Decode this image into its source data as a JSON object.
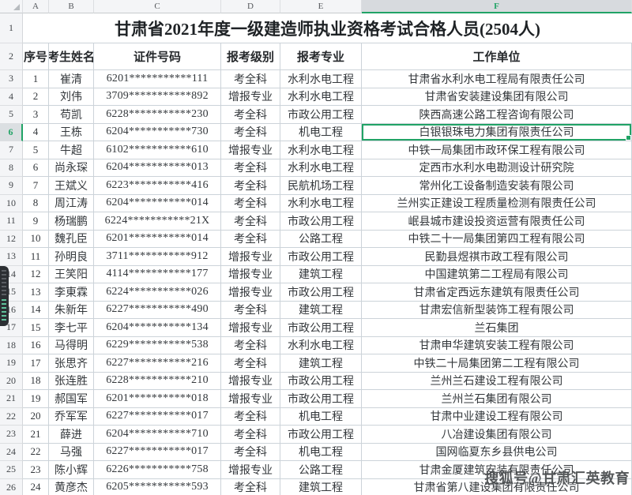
{
  "sheet": {
    "column_headers": [
      "A",
      "B",
      "C",
      "D",
      "E",
      "F"
    ],
    "row1_num": "1",
    "row2_num": "2",
    "title": "甘肃省2021年度一级建造师执业资格考试合格人员(2504人)",
    "headers": {
      "seq": "序号",
      "name": "考生姓名",
      "id": "证件号码",
      "level": "报考级别",
      "major": "报考专业",
      "employer": "工作单位"
    },
    "selection": {
      "column": "F",
      "row": "6",
      "cell": "F6",
      "cell_value": "白银银珠电力集团有限责任公司"
    },
    "rows": [
      {
        "row_num": "3",
        "seq": "1",
        "name": "崔清",
        "id": "6201***********111",
        "level": "考全科",
        "major": "水利水电工程",
        "employer": "甘肃省水利水电工程局有限责任公司",
        "selected": false
      },
      {
        "row_num": "4",
        "seq": "2",
        "name": "刘伟",
        "id": "3709***********892",
        "level": "增报专业",
        "major": "水利水电工程",
        "employer": "甘肃省安装建设集团有限公司",
        "selected": false
      },
      {
        "row_num": "5",
        "seq": "3",
        "name": "苟凯",
        "id": "6228***********230",
        "level": "考全科",
        "major": "市政公用工程",
        "employer": "陕西高速公路工程咨询有限公司",
        "selected": false
      },
      {
        "row_num": "6",
        "seq": "4",
        "name": "王栋",
        "id": "6204***********730",
        "level": "考全科",
        "major": "机电工程",
        "employer": "白银银珠电力集团有限责任公司",
        "selected": true
      },
      {
        "row_num": "7",
        "seq": "5",
        "name": "牛超",
        "id": "6102***********610",
        "level": "增报专业",
        "major": "水利水电工程",
        "employer": "中铁一局集团市政环保工程有限公司",
        "selected": false
      },
      {
        "row_num": "8",
        "seq": "6",
        "name": "尚永琛",
        "id": "6204***********013",
        "level": "考全科",
        "major": "水利水电工程",
        "employer": "定西市水利水电勘测设计研究院",
        "selected": false
      },
      {
        "row_num": "9",
        "seq": "7",
        "name": "王斌义",
        "id": "6223***********416",
        "level": "考全科",
        "major": "民航机场工程",
        "employer": "常州化工设备制造安装有限公司",
        "selected": false
      },
      {
        "row_num": "10",
        "seq": "8",
        "name": "周江涛",
        "id": "6204***********014",
        "level": "考全科",
        "major": "水利水电工程",
        "employer": "兰州实正建设工程质量检测有限责任公司",
        "selected": false
      },
      {
        "row_num": "11",
        "seq": "9",
        "name": "杨瑞鹏",
        "id": "6224***********21X",
        "level": "考全科",
        "major": "市政公用工程",
        "employer": "岷县城市建设投资运营有限责任公司",
        "selected": false
      },
      {
        "row_num": "12",
        "seq": "10",
        "name": "魏孔臣",
        "id": "6201***********014",
        "level": "考全科",
        "major": "公路工程",
        "employer": "中铁二十一局集团第四工程有限公司",
        "selected": false
      },
      {
        "row_num": "13",
        "seq": "11",
        "name": "孙明良",
        "id": "3711***********912",
        "level": "增报专业",
        "major": "市政公用工程",
        "employer": "民勤县煜祺市政工程有限公司",
        "selected": false
      },
      {
        "row_num": "14",
        "seq": "12",
        "name": "王笑阳",
        "id": "4114***********177",
        "level": "增报专业",
        "major": "建筑工程",
        "employer": "中国建筑第二工程局有限公司",
        "selected": false
      },
      {
        "row_num": "15",
        "seq": "13",
        "name": "李東霖",
        "id": "6224***********026",
        "level": "增报专业",
        "major": "市政公用工程",
        "employer": "甘肃省定西远东建筑有限责任公司",
        "selected": false
      },
      {
        "row_num": "16",
        "seq": "14",
        "name": "朱新年",
        "id": "6227***********490",
        "level": "考全科",
        "major": "建筑工程",
        "employer": "甘肃宏信新型装饰工程有限公司",
        "selected": false
      },
      {
        "row_num": "17",
        "seq": "15",
        "name": "李七平",
        "id": "6204***********134",
        "level": "增报专业",
        "major": "市政公用工程",
        "employer": "兰石集团",
        "selected": false
      },
      {
        "row_num": "18",
        "seq": "16",
        "name": "马得明",
        "id": "6229***********538",
        "level": "考全科",
        "major": "水利水电工程",
        "employer": "甘肃申华建筑安装工程有限公司",
        "selected": false
      },
      {
        "row_num": "19",
        "seq": "17",
        "name": "张思齐",
        "id": "6227***********216",
        "level": "考全科",
        "major": "建筑工程",
        "employer": "中铁二十局集团第二工程有限公司",
        "selected": false
      },
      {
        "row_num": "20",
        "seq": "18",
        "name": "张连胜",
        "id": "6228***********210",
        "level": "增报专业",
        "major": "市政公用工程",
        "employer": "兰州兰石建设工程有限公司",
        "selected": false
      },
      {
        "row_num": "21",
        "seq": "19",
        "name": "郝国军",
        "id": "6201***********018",
        "level": "增报专业",
        "major": "市政公用工程",
        "employer": "兰州兰石集团有限公司",
        "selected": false
      },
      {
        "row_num": "22",
        "seq": "20",
        "name": "乔军军",
        "id": "6227***********017",
        "level": "考全科",
        "major": "机电工程",
        "employer": "甘肃中业建设工程有限公司",
        "selected": false
      },
      {
        "row_num": "23",
        "seq": "21",
        "name": "薛进",
        "id": "6204***********710",
        "level": "考全科",
        "major": "市政公用工程",
        "employer": "八冶建设集团有限公司",
        "selected": false
      },
      {
        "row_num": "24",
        "seq": "22",
        "name": "马强",
        "id": "6227***********017",
        "level": "考全科",
        "major": "机电工程",
        "employer": "国网临夏东乡县供电公司",
        "selected": false
      },
      {
        "row_num": "25",
        "seq": "23",
        "name": "陈小辉",
        "id": "6226***********758",
        "level": "增报专业",
        "major": "公路工程",
        "employer": "甘肃金厦建筑安装有限责任公司",
        "selected": false
      },
      {
        "row_num": "26",
        "seq": "24",
        "name": "黄彦杰",
        "id": "6205***********593",
        "level": "考全科",
        "major": "建筑工程",
        "employer": "甘肃省第八建设集团有限责任公司",
        "selected": false
      }
    ]
  },
  "watermark": "搜狐号@甘肃汇英教育",
  "colors": {
    "accent_green": "#21a366"
  }
}
